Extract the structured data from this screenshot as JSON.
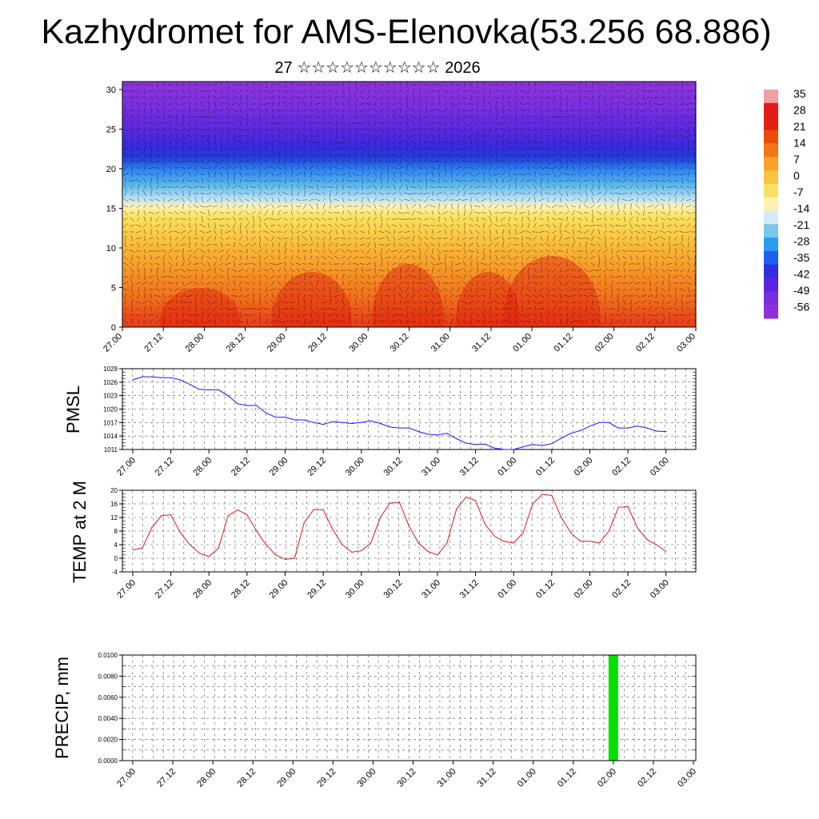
{
  "chart_data": [
    {
      "type": "heatmap",
      "name": "cross-section",
      "title": "Kazhydromet for AMS-Elenovka(53.256 68.886)",
      "subtitle": "27 ☆☆☆☆☆☆☆☆☆☆ 2026",
      "x_ticks": [
        "27.00",
        "27.12",
        "28.00",
        "28.12",
        "29.00",
        "29.12",
        "30.00",
        "30.12",
        "31.00",
        "31.12",
        "01.00",
        "01.12",
        "02.00",
        "02.12",
        "03.00"
      ],
      "y_range": [
        0,
        31
      ],
      "y_ticks": [
        0,
        5,
        10,
        15,
        20,
        25,
        30
      ],
      "colorbar_labels": [
        "35",
        "28",
        "21",
        "14",
        "7",
        "0",
        "-7",
        "-14",
        "-21",
        "-28",
        "-35",
        "-42",
        "-49",
        "-56"
      ],
      "colorbar_colors": [
        "#f0a0a0",
        "#e41a1c",
        "#e2200f",
        "#ec4b0c",
        "#f57418",
        "#f9a12a",
        "#fbc23c",
        "#fbe067",
        "#fdf3b0",
        "#d6ecf5",
        "#79c8ea",
        "#2a9df0",
        "#1d5ff0",
        "#2f2fe0",
        "#5a24e0",
        "#7a2ee0",
        "#9030d8"
      ]
    },
    {
      "type": "line",
      "name": "pmsl",
      "ylabel": "PMSL",
      "ylim": [
        1011,
        1029
      ],
      "y_ticks": [
        1011,
        1014,
        1017,
        1020,
        1023,
        1026,
        1029
      ],
      "x_ticks": [
        "27.00",
        "27.12",
        "28.00",
        "28.12",
        "29.00",
        "29.12",
        "30.00",
        "30.12",
        "31.00",
        "31.12",
        "01.00",
        "01.12",
        "02.00",
        "02.12",
        "03.00"
      ],
      "color": "#1a1aff",
      "values": [
        1026.5,
        1027.2,
        1027.2,
        1027.0,
        1027.0,
        1026.5,
        1025.5,
        1024.4,
        1024.3,
        1024.3,
        1023.0,
        1021.2,
        1020.8,
        1020.8,
        1019.1,
        1018.2,
        1018.2,
        1017.6,
        1017.6,
        1017.0,
        1016.6,
        1017.2,
        1017.0,
        1016.8,
        1017.0,
        1017.4,
        1016.8,
        1016.0,
        1015.8,
        1015.8,
        1015.0,
        1014.4,
        1014.2,
        1014.6,
        1013.4,
        1012.4,
        1012.1,
        1012.2,
        1011.3,
        1011.0,
        1011.0,
        1011.6,
        1012.1,
        1011.9,
        1012.3,
        1013.5,
        1014.6,
        1015.2,
        1016.2,
        1017.0,
        1017.0,
        1015.8,
        1015.8,
        1016.2,
        1015.8,
        1015.1,
        1015.0
      ]
    },
    {
      "type": "line",
      "name": "temp",
      "ylabel": "TEMP at 2 M",
      "ylim": [
        -4,
        20
      ],
      "y_ticks": [
        -4,
        0,
        4,
        8,
        12,
        16,
        20
      ],
      "x_ticks": [
        "27.00",
        "27.12",
        "28.00",
        "28.12",
        "29.00",
        "29.12",
        "30.00",
        "30.12",
        "31.00",
        "31.12",
        "01.00",
        "01.12",
        "02.00",
        "02.12",
        "03.00"
      ],
      "color": "#e31a1c",
      "values": [
        2.5,
        3.0,
        9.0,
        12.5,
        12.8,
        7.5,
        4.0,
        1.5,
        0.5,
        3.0,
        12.5,
        14.2,
        12.8,
        8.0,
        4.0,
        1.0,
        -0.3,
        0.0,
        10.5,
        14.3,
        14.3,
        8.5,
        4.0,
        1.8,
        2.2,
        4.5,
        12.0,
        16.2,
        16.5,
        9.5,
        4.5,
        2.0,
        1.0,
        4.5,
        14.5,
        18.0,
        17.0,
        10.0,
        6.5,
        5.0,
        4.5,
        7.5,
        16.0,
        18.8,
        18.5,
        12.0,
        7.5,
        5.0,
        5.0,
        4.5,
        8.0,
        15.0,
        15.2,
        9.0,
        5.5,
        4.0,
        2.0
      ]
    },
    {
      "type": "bar",
      "name": "precip",
      "ylabel": "PRECIP, mm",
      "ylim": [
        0,
        0.01
      ],
      "y_ticks": [
        "0.0000",
        "0.0020",
        "0.0040",
        "0.0060",
        "0.0080",
        "0.0100"
      ],
      "x_ticks": [
        "27.00",
        "27.12",
        "28.00",
        "28.12",
        "29.00",
        "29.12",
        "30.00",
        "30.12",
        "31.00",
        "31.12",
        "01.00",
        "01.12",
        "02.00",
        "02.12",
        "03.00"
      ],
      "color": "#00e000",
      "bars": [
        {
          "x": "02.00",
          "value": 0.01
        }
      ]
    }
  ]
}
